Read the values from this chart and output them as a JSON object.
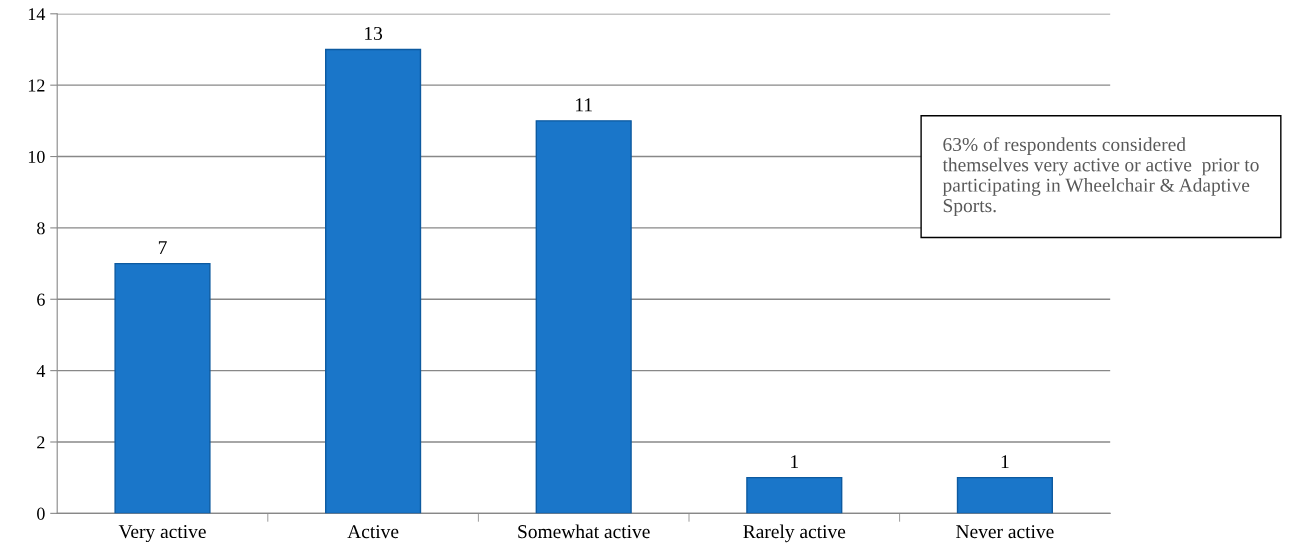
{
  "chart_data": {
    "type": "bar",
    "categories": [
      "Very active",
      "Active",
      "Somewhat active",
      "Rarely active",
      "Never active"
    ],
    "values": [
      7,
      13,
      11,
      1,
      1
    ],
    "color": "#1a76c9",
    "ylim": [
      0,
      14
    ],
    "yticks": [
      0,
      2,
      4,
      6,
      8,
      10,
      12,
      14
    ],
    "grid": "y",
    "data_labels": true,
    "annotations": [
      "63% of respondents considered themselves very active or active  prior to participating in Wheelchair & Adaptive Sports."
    ]
  }
}
